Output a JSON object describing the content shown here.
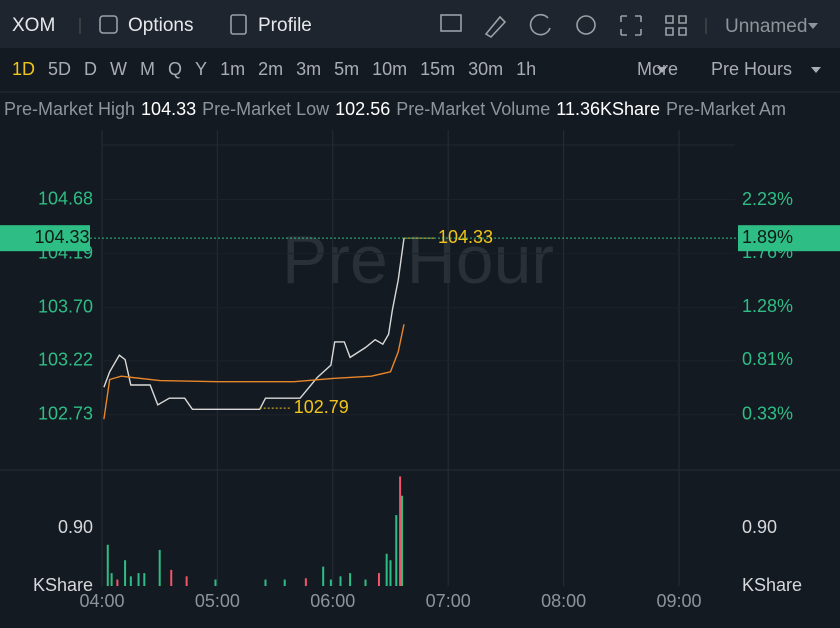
{
  "toolbar": {
    "symbol": "XOM",
    "options": "Options",
    "profile": "Profile",
    "layout": "Unnamed"
  },
  "periods": [
    "1D",
    "5D",
    "D",
    "W",
    "M",
    "Q",
    "Y",
    "1m",
    "2m",
    "3m",
    "5m",
    "10m",
    "15m",
    "30m",
    "1h"
  ],
  "more": "More",
  "session": "Pre Hours",
  "stats": [
    {
      "label": "Pre-Market High",
      "value": 104.33
    },
    {
      "label": "Pre-Market Low",
      "value": 102.56
    },
    {
      "label": "Pre-Market Volume",
      "value": "11.36KShare"
    },
    {
      "label": "Pre-Market Am"
    }
  ],
  "chart": {
    "type": "line",
    "watermark": "Pre Hour",
    "xlim": [
      "04:00",
      "09:29"
    ],
    "xticks": [
      "04:00",
      "05:00",
      "06:00",
      "07:00",
      "08:00",
      "09:00"
    ],
    "ylim": [
      102.23,
      105.31
    ],
    "yticks": [
      104.68,
      104.19,
      {
        "value": 103.7,
        "label": "103.70"
      },
      103.22,
      102.73
    ],
    "y2lim": [
      -0.16,
      2.85
    ],
    "y2ticks": [
      {
        "value": 2.23,
        "label": "2.23%"
      },
      {
        "value": 1.76,
        "label": "1.76%"
      },
      {
        "value": 1.28,
        "label": "1.28%"
      },
      {
        "value": 0.81,
        "label": "0.81%"
      },
      {
        "value": 0.33,
        "label": "0.33%"
      }
    ],
    "series": [
      {
        "color": "#d9d9d9",
        "x": [
          "04:01",
          "04:04",
          "04:09",
          "04:12",
          "04:15",
          "04:25",
          "04:29",
          "04:35",
          "04:43",
          "04:47",
          "05:22",
          "05:25",
          "05:43",
          "05:52",
          "05:59",
          "06:01",
          "06:06",
          "06:09",
          "06:17",
          "06:22",
          "06:26",
          "06:29",
          "06:31",
          "06:34",
          "06:37"
        ],
        "values": [
          102.98,
          103.12,
          103.27,
          103.23,
          103.0,
          103.0,
          102.82,
          102.88,
          102.88,
          102.78,
          102.78,
          102.88,
          102.88,
          103.07,
          103.18,
          103.39,
          103.39,
          103.25,
          103.34,
          103.41,
          103.37,
          103.46,
          103.68,
          103.95,
          104.33
        ]
      },
      {
        "color": "#e8862a",
        "x": [
          "04:01",
          "04:04",
          "04:10",
          "04:30",
          "05:00",
          "05:40",
          "06:00",
          "06:20",
          "06:30",
          "06:34",
          "06:37"
        ],
        "values": [
          102.69,
          103.05,
          103.08,
          103.04,
          103.03,
          103.03,
          103.06,
          103.08,
          103.12,
          103.3,
          103.55
        ]
      }
    ],
    "last_price": 104.33,
    "last_change": {
      "value": 1.89,
      "label": "1.89%"
    },
    "annotations": [
      {
        "x": "06:37",
        "value": 104.33
      },
      {
        "x": "05:22",
        "value": 102.79
      }
    ]
  },
  "volume": {
    "type": "bar",
    "unit": "KShare",
    "ylim": [
      0,
      1.8
    ],
    "yticks": [
      {
        "value": 0.9,
        "label": "0.90"
      }
    ],
    "x": [
      "04:03",
      "04:05",
      "04:08",
      "04:12",
      "04:15",
      "04:19",
      "04:22",
      "04:30",
      "04:36",
      "04:44",
      "04:59",
      "05:25",
      "05:35",
      "05:46",
      "05:55",
      "05:59",
      "06:04",
      "06:09",
      "06:17",
      "06:24",
      "06:28",
      "06:30",
      "06:33",
      "06:35",
      "06:36"
    ],
    "values": [
      0.64,
      0.2,
      0.1,
      0.4,
      0.15,
      0.2,
      0.2,
      0.56,
      0.25,
      0.15,
      0.1,
      0.1,
      0.1,
      0.12,
      0.3,
      0.1,
      0.15,
      0.2,
      0.1,
      0.2,
      0.5,
      0.4,
      1.1,
      1.7,
      1.4
    ],
    "colors": [
      "#2ebd85",
      "#2ebd85",
      "#f0556a",
      "#2ebd85",
      "#2ebd85",
      "#2ebd85",
      "#2ebd85",
      "#2ebd85",
      "#f0556a",
      "#f0556a",
      "#2ebd85",
      "#2ebd85",
      "#2ebd85",
      "#f0556a",
      "#2ebd85",
      "#2ebd85",
      "#2ebd85",
      "#2ebd85",
      "#2ebd85",
      "#f0556a",
      "#2ebd85",
      "#2ebd85",
      "#2ebd85",
      "#f0556a",
      "#2ebd85"
    ]
  }
}
